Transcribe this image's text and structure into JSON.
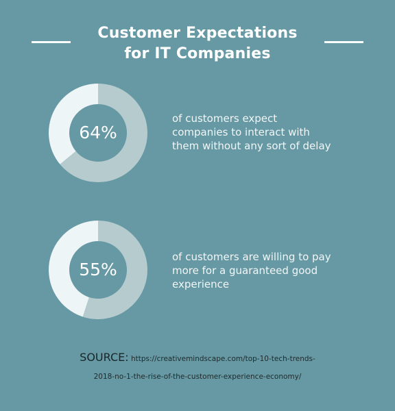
{
  "title_lines": [
    "Customer Expectations",
    "for IT Companies"
  ],
  "colors": {
    "background": "#6699a4",
    "ring_filled": "#b5cbcd",
    "ring_remaining": "#eef5f6"
  },
  "chart_data": [
    {
      "type": "pie",
      "values": [
        64,
        36
      ],
      "label": "64%",
      "description_lines": [
        "of customers expect",
        "companies to interact with",
        "them without any sort of delay"
      ]
    },
    {
      "type": "pie",
      "values": [
        55,
        45
      ],
      "label": "55%",
      "description_lines": [
        "of customers are willing to pay",
        "more for a guaranteed good",
        "experience"
      ]
    }
  ],
  "source": {
    "label": "SOURCE:",
    "url_line1": "https://creativemindscape.com/top-10-tech-trends-",
    "url_line2": "2018-no-1-the-rise-of-the-customer-experience-economy/"
  }
}
